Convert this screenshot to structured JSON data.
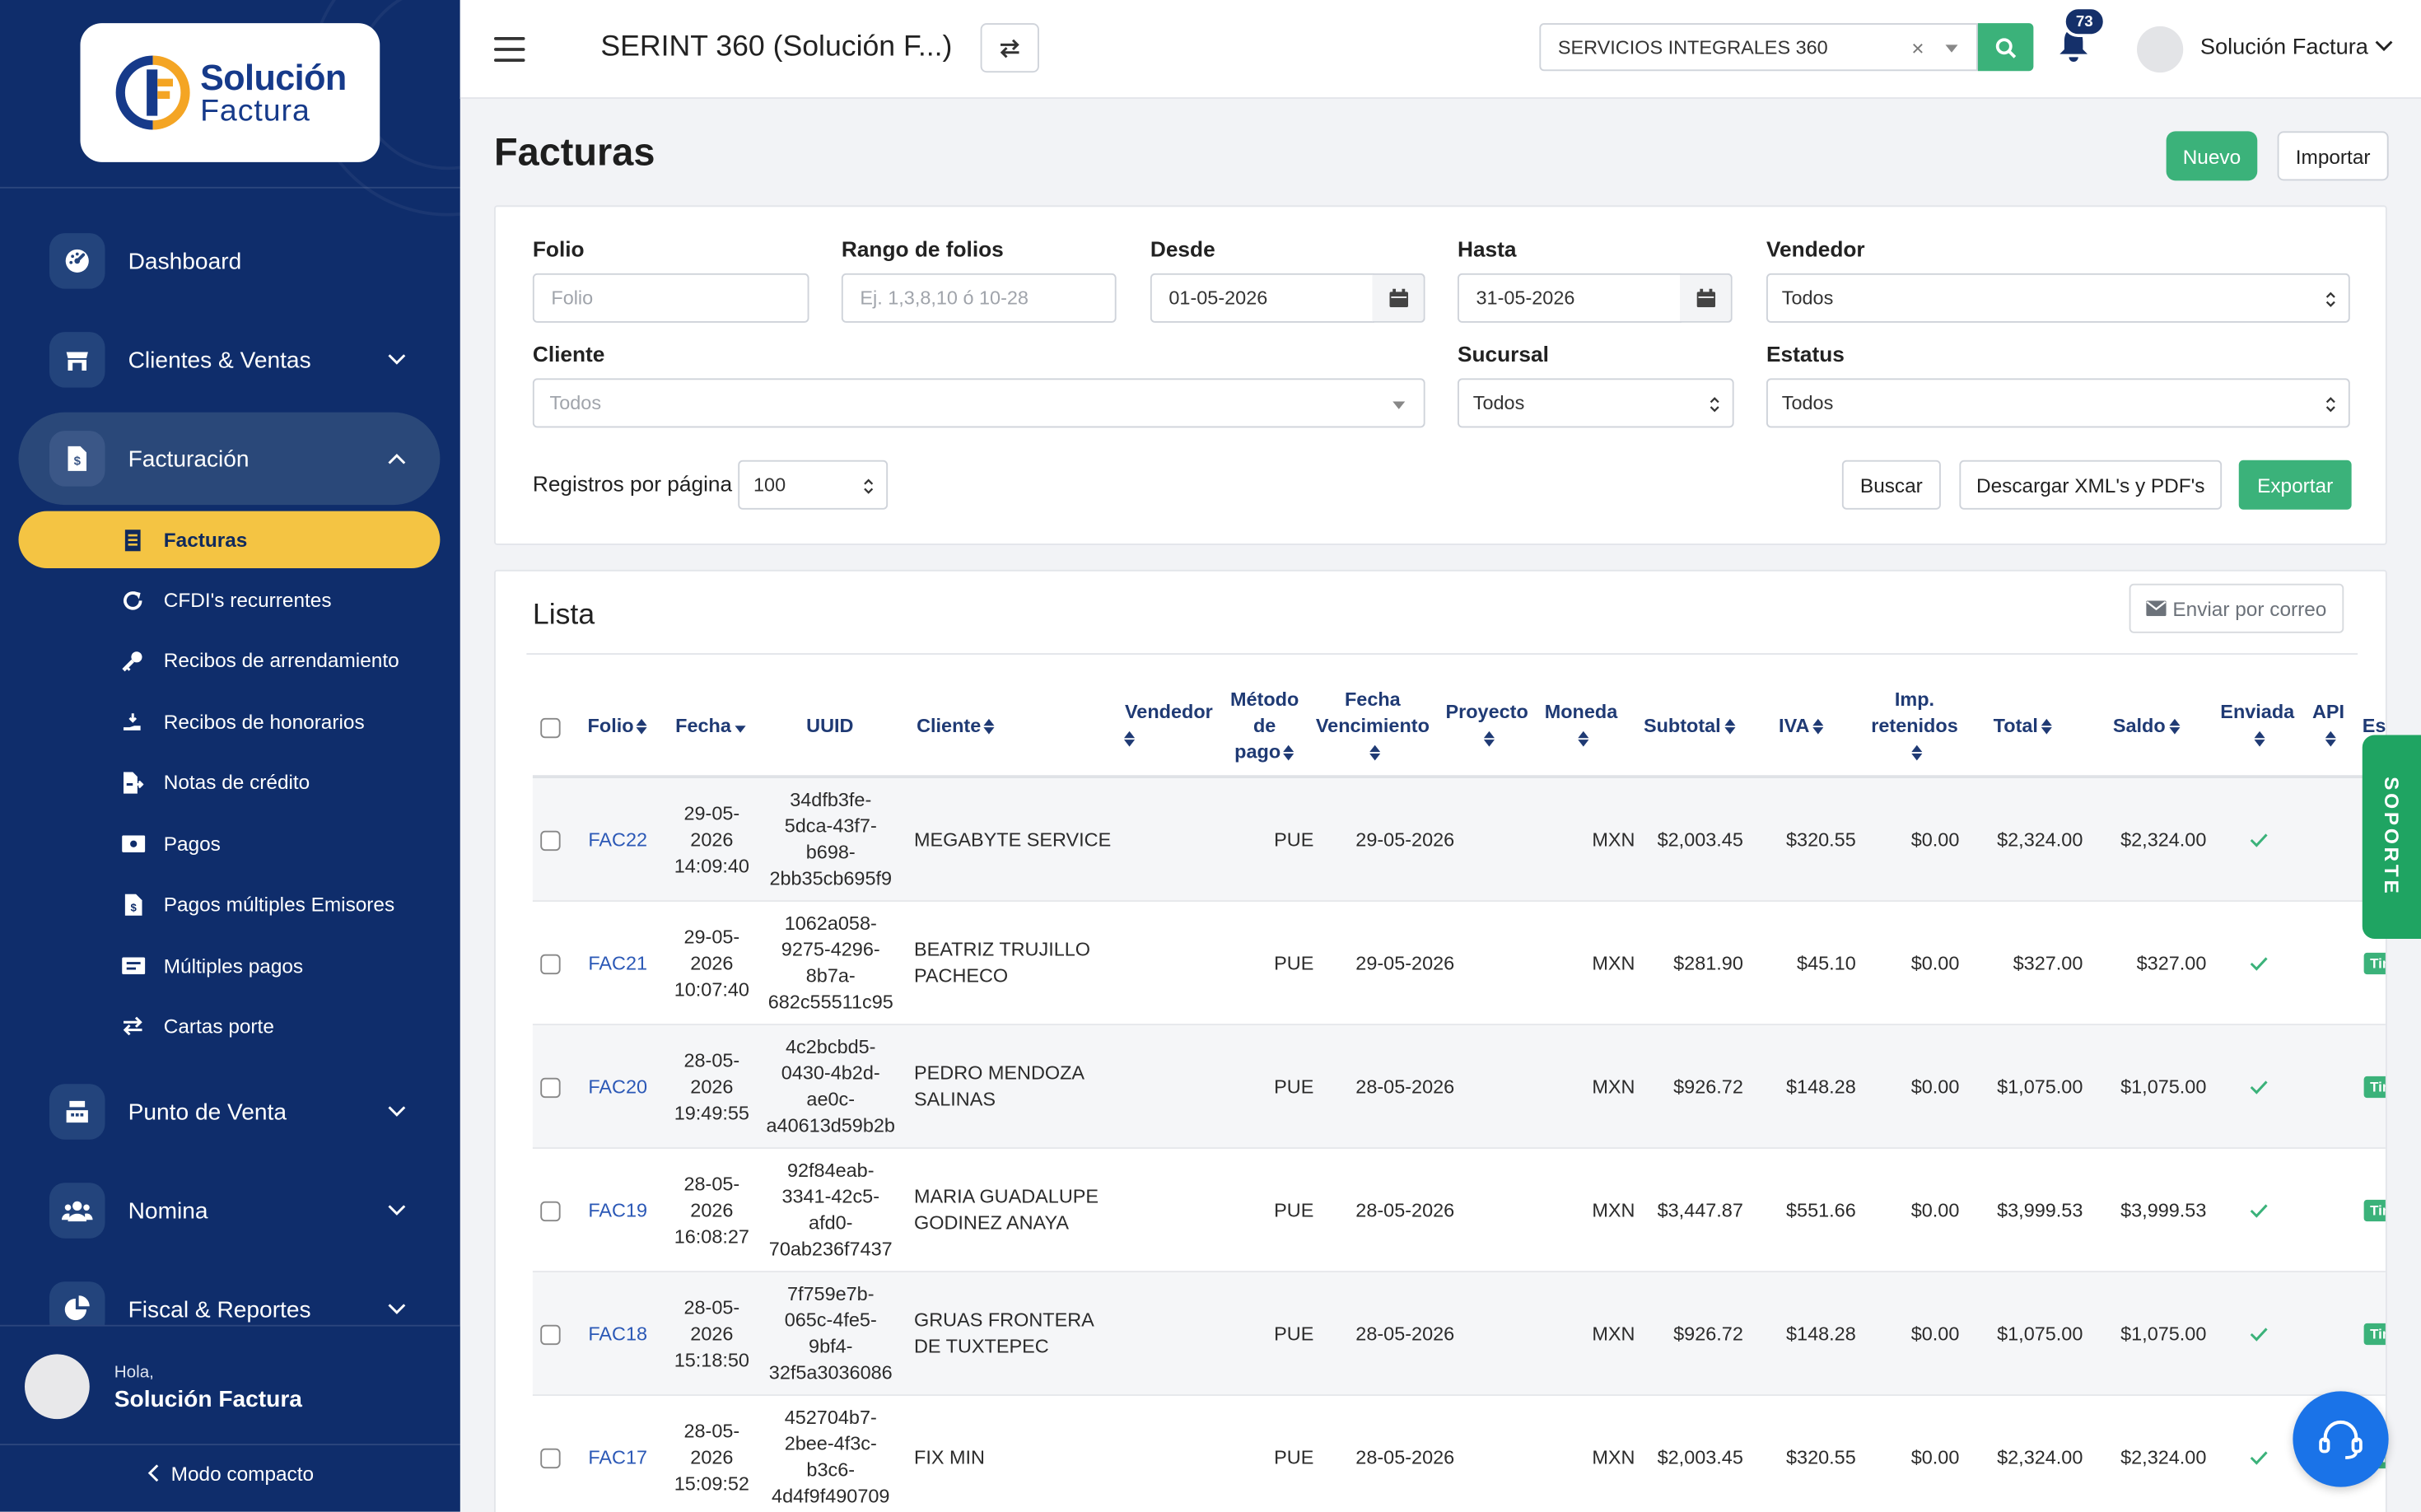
{
  "app": {
    "logo_line1": "Solución",
    "logo_line2": "Factura",
    "brand_blue": "#0f2d6b",
    "accent_yellow": "#f4c443",
    "accent_green": "#3bb27a"
  },
  "sidebar": {
    "items": [
      {
        "label": "Dashboard",
        "icon": "dashboard-icon"
      },
      {
        "label": "Clientes & Ventas",
        "icon": "store-icon"
      },
      {
        "label": "Facturación",
        "icon": "invoice-icon"
      },
      {
        "label": "Punto de Venta",
        "icon": "cash-register-icon"
      },
      {
        "label": "Nomina",
        "icon": "users-icon"
      },
      {
        "label": "Fiscal & Reportes",
        "icon": "pie-chart-icon"
      }
    ],
    "sub_items": [
      {
        "label": "Facturas",
        "icon": "receipt-icon"
      },
      {
        "label": "CFDI's recurrentes",
        "icon": "refresh-icon"
      },
      {
        "label": "Recibos de arrendamiento",
        "icon": "key-icon"
      },
      {
        "label": "Recibos de honorarios",
        "icon": "hand-coin-icon"
      },
      {
        "label": "Notas de crédito",
        "icon": "file-arrow-icon"
      },
      {
        "label": "Pagos",
        "icon": "money-bill-icon"
      },
      {
        "label": "Pagos múltiples Emisores",
        "icon": "file-dollar-icon"
      },
      {
        "label": "Múltiples pagos",
        "icon": "money-bills-icon"
      },
      {
        "label": "Cartas porte",
        "icon": "exchange-icon"
      }
    ],
    "greeting": "Hola,",
    "user_name": "Solución Factura",
    "compact_label": "Modo compacto"
  },
  "topbar": {
    "title": "SERINT 360 (Solución F...)",
    "company": "SERVICIOS INTEGRALES 360",
    "company_clear": "×",
    "notifications": "73",
    "user": "Solución Factura"
  },
  "page": {
    "title": "Facturas",
    "new_label": "Nuevo",
    "import_label": "Importar"
  },
  "filters": {
    "folio_label": "Folio",
    "folio_placeholder": "Folio",
    "rango_label": "Rango de folios",
    "rango_placeholder": "Ej. 1,3,8,10 ó 10-28",
    "desde_label": "Desde",
    "desde_value": "01-05-2026",
    "hasta_label": "Hasta",
    "hasta_value": "31-05-2026",
    "vendedor_label": "Vendedor",
    "vendedor_value": "Todos",
    "cliente_label": "Cliente",
    "cliente_value": "Todos",
    "sucursal_label": "Sucursal",
    "sucursal_value": "Todos",
    "estatus_label": "Estatus",
    "estatus_value": "Todos",
    "per_page_label": "Registros por página",
    "per_page_value": "100",
    "search_label": "Buscar",
    "download_label": "Descargar XML's y PDF's",
    "export_label": "Exportar"
  },
  "list": {
    "title": "Lista",
    "email_label": "Enviar por correo",
    "columns": {
      "folio": "Folio",
      "fecha": "Fecha",
      "uuid": "UUID",
      "cliente": "Cliente",
      "vendedor": "Vendedor",
      "metodo_l1": "Método",
      "metodo_l2": "de",
      "metodo_l3": "pago",
      "vencimiento_l1": "Fecha",
      "vencimiento_l2": "Vencimiento",
      "proyecto": "Proyecto",
      "moneda": "Moneda",
      "subtotal": "Subtotal",
      "iva": "IVA",
      "retenidos_l1": "Imp.",
      "retenidos_l2": "retenidos",
      "total": "Total",
      "saldo": "Saldo",
      "enviada": "Enviada",
      "api": "API",
      "estatus": "Estatus"
    },
    "status_label": "Timbrada",
    "rows": [
      {
        "folio": "FAC22",
        "fecha": [
          "29-05-",
          "2026",
          "14:09:40"
        ],
        "uuid": [
          "34dfb3fe-",
          "5dca-43f7-",
          "b698-",
          "2bb35cb695f9"
        ],
        "cliente": [
          "MEGABYTE SERVICE"
        ],
        "metodo": "PUE",
        "vencimiento": "29-05-2026",
        "moneda": "MXN",
        "subtotal": "$2,003.45",
        "iva": "$320.55",
        "retenidos": "$0.00",
        "total": "$2,324.00",
        "saldo": "$2,324.00"
      },
      {
        "folio": "FAC21",
        "fecha": [
          "29-05-",
          "2026",
          "10:07:40"
        ],
        "uuid": [
          "1062a058-",
          "9275-4296-",
          "8b7a-",
          "682c55511c95"
        ],
        "cliente": [
          "BEATRIZ TRUJILLO",
          "PACHECO"
        ],
        "metodo": "PUE",
        "vencimiento": "29-05-2026",
        "moneda": "MXN",
        "subtotal": "$281.90",
        "iva": "$45.10",
        "retenidos": "$0.00",
        "total": "$327.00",
        "saldo": "$327.00"
      },
      {
        "folio": "FAC20",
        "fecha": [
          "28-05-",
          "2026",
          "19:49:55"
        ],
        "uuid": [
          "4c2bcbd5-",
          "0430-4b2d-",
          "ae0c-",
          "a40613d59b2b"
        ],
        "cliente": [
          "PEDRO MENDOZA",
          "SALINAS"
        ],
        "metodo": "PUE",
        "vencimiento": "28-05-2026",
        "moneda": "MXN",
        "subtotal": "$926.72",
        "iva": "$148.28",
        "retenidos": "$0.00",
        "total": "$1,075.00",
        "saldo": "$1,075.00"
      },
      {
        "folio": "FAC19",
        "fecha": [
          "28-05-",
          "2026",
          "16:08:27"
        ],
        "uuid": [
          "92f84eab-",
          "3341-42c5-",
          "afd0-",
          "70ab236f7437"
        ],
        "cliente": [
          "MARIA GUADALUPE",
          "GODINEZ ANAYA"
        ],
        "metodo": "PUE",
        "vencimiento": "28-05-2026",
        "moneda": "MXN",
        "subtotal": "$3,447.87",
        "iva": "$551.66",
        "retenidos": "$0.00",
        "total": "$3,999.53",
        "saldo": "$3,999.53"
      },
      {
        "folio": "FAC18",
        "fecha": [
          "28-05-",
          "2026",
          "15:18:50"
        ],
        "uuid": [
          "7f759e7b-",
          "065c-4fe5-",
          "9bf4-",
          "32f5a3036086"
        ],
        "cliente": [
          "GRUAS FRONTERA",
          "DE TUXTEPEC"
        ],
        "metodo": "PUE",
        "vencimiento": "28-05-2026",
        "moneda": "MXN",
        "subtotal": "$926.72",
        "iva": "$148.28",
        "retenidos": "$0.00",
        "total": "$1,075.00",
        "saldo": "$1,075.00"
      },
      {
        "folio": "FAC17",
        "fecha": [
          "28-05-",
          "2026",
          "15:09:52"
        ],
        "uuid": [
          "452704b7-",
          "2bee-4f3c-",
          "b3c6-",
          "4d4f9f490709"
        ],
        "cliente": [
          "FIX MIN"
        ],
        "metodo": "PUE",
        "vencimiento": "28-05-2026",
        "moneda": "MXN",
        "subtotal": "$2,003.45",
        "iva": "$320.55",
        "retenidos": "$0.00",
        "total": "$2,324.00",
        "saldo": "$2,324.00"
      }
    ]
  },
  "support_label": "SOPORTE"
}
